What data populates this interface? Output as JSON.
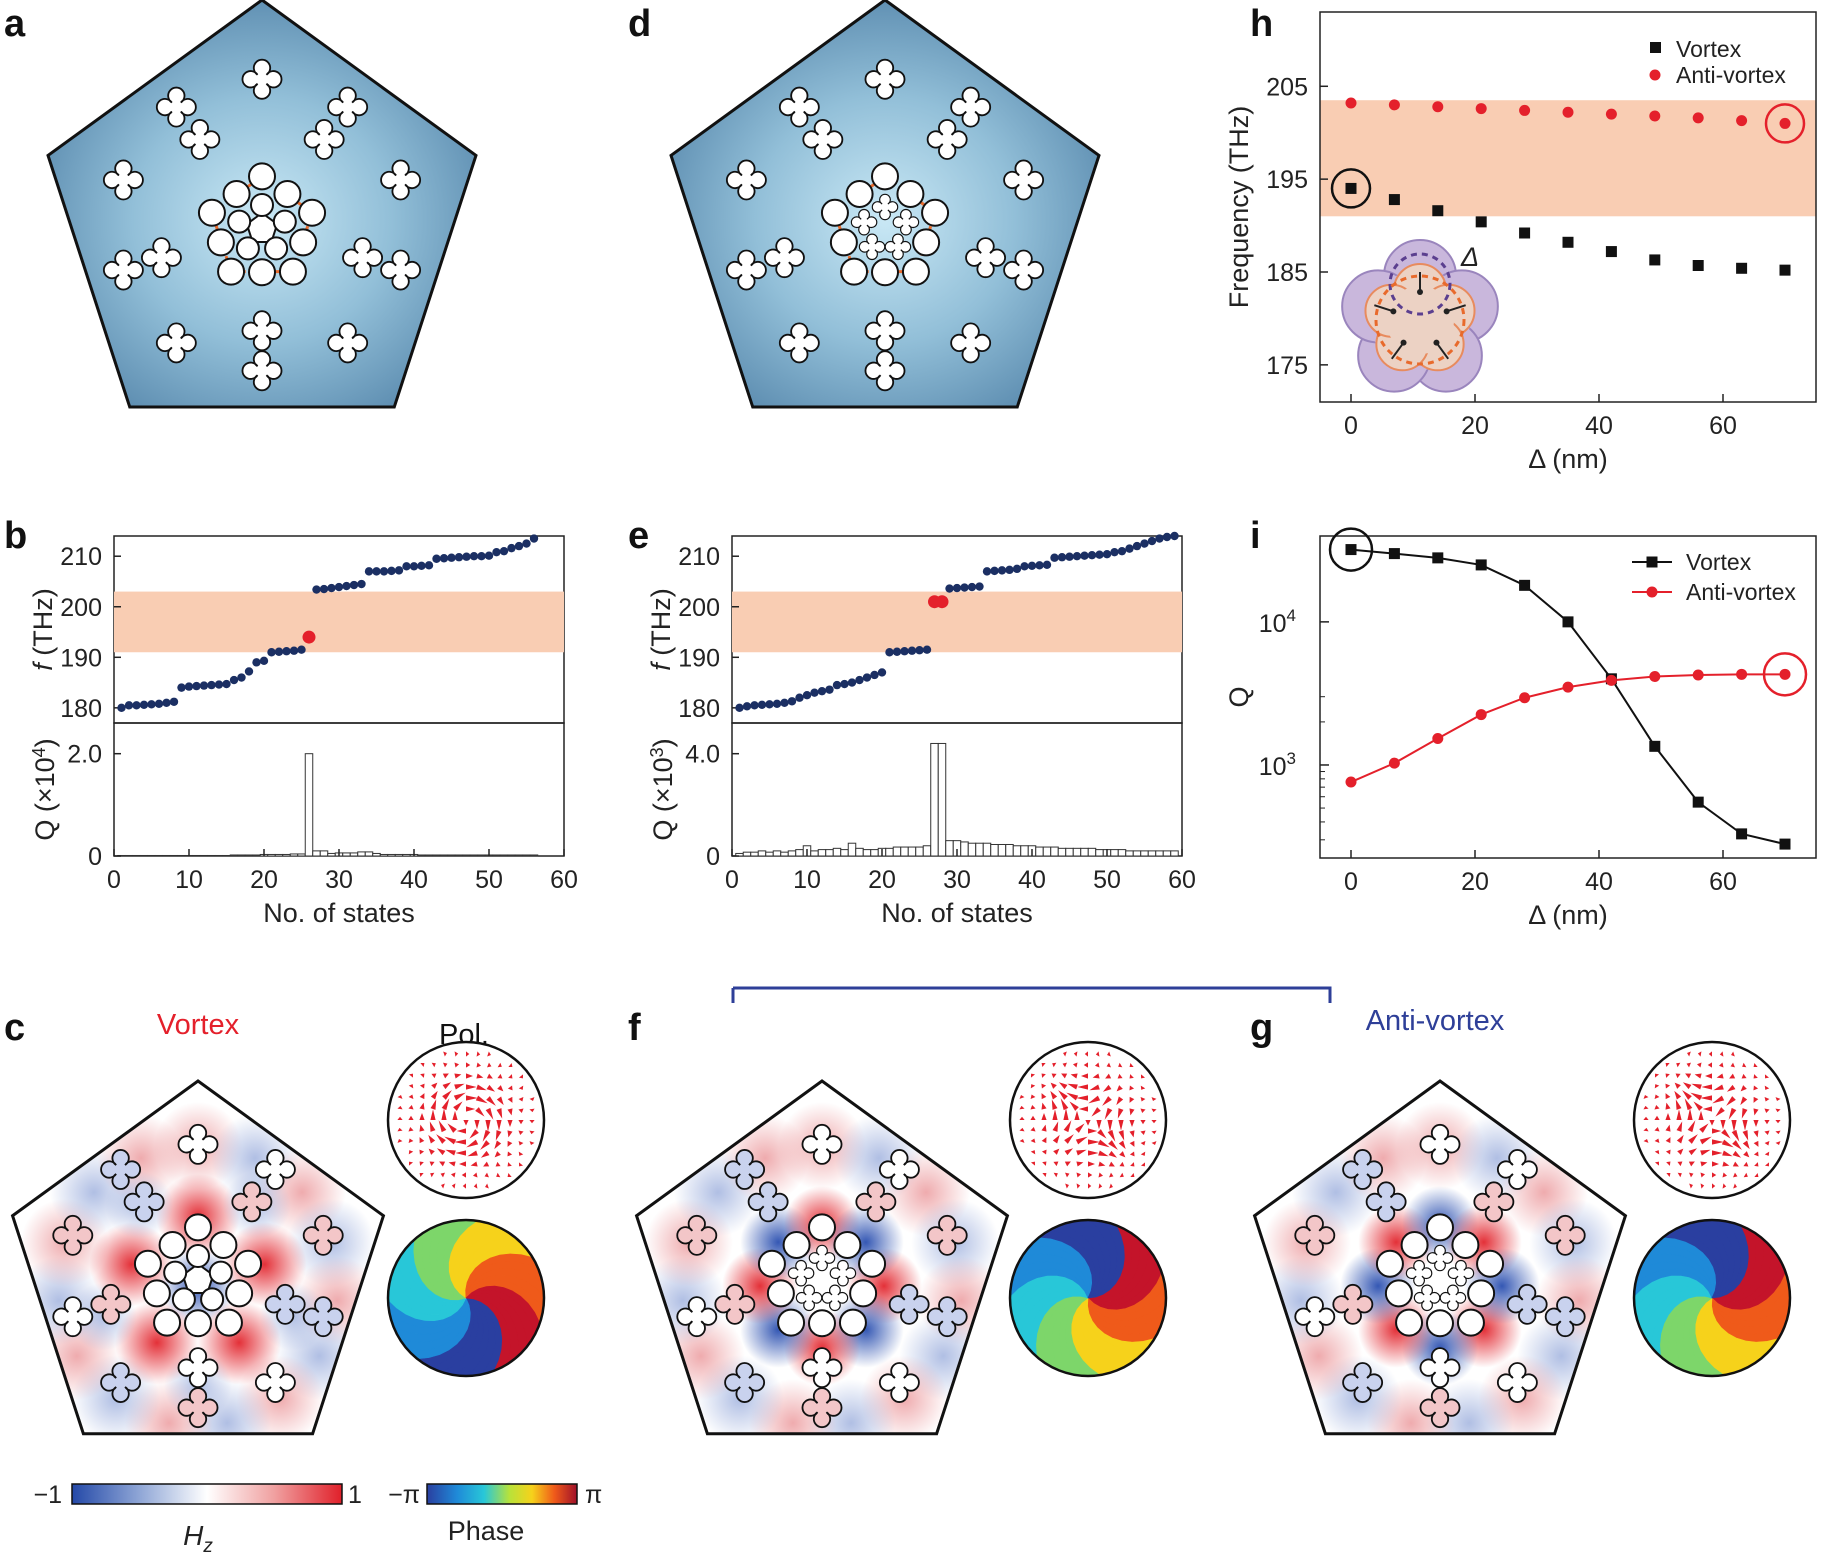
{
  "panel_labels": {
    "a": "a",
    "b": "b",
    "c": "c",
    "d": "d",
    "e": "e",
    "f": "f",
    "g": "g",
    "h": "h",
    "i": "i"
  },
  "colors": {
    "navy": "#1b2f63",
    "red": "#e4202b",
    "band": "#f9cdb3",
    "orange": "#e86a2c",
    "purple": "#5b3f8f",
    "blue_title": "#2e3f98"
  },
  "panel_c": {
    "title": "Vortex",
    "pol_label": "Pol."
  },
  "panel_fg": {
    "title": "Anti-vortex"
  },
  "colorbars": {
    "hz": {
      "min": "−1",
      "max": "1",
      "label": "H",
      "label_sub": "z"
    },
    "phase": {
      "min": "−π",
      "max": "π",
      "label": "Phase"
    }
  },
  "inset_h": {
    "label": "Δ"
  },
  "chart_data": [
    {
      "id": "b_top",
      "type": "scatter",
      "title": "",
      "xlabel": "",
      "ylabel": "f (THz)",
      "xlim": [
        0,
        60
      ],
      "ylim": [
        177,
        214
      ],
      "yticks": [
        180,
        190,
        200,
        210
      ],
      "band": [
        191,
        203
      ],
      "series": [
        {
          "name": "states",
          "x": [
            1,
            2,
            3,
            4,
            5,
            6,
            7,
            8,
            9,
            10,
            11,
            12,
            13,
            14,
            15,
            16,
            17,
            18,
            19,
            20,
            21,
            22,
            23,
            24,
            25,
            27,
            28,
            29,
            30,
            31,
            32,
            33,
            34,
            35,
            36,
            37,
            38,
            39,
            40,
            41,
            42,
            43,
            44,
            45,
            46,
            47,
            48,
            49,
            50,
            51,
            52,
            53,
            54,
            55,
            56
          ],
          "y": [
            180,
            180.5,
            180.5,
            180.6,
            180.7,
            180.8,
            181,
            181.2,
            184,
            184.2,
            184.3,
            184.4,
            184.5,
            184.6,
            184.7,
            185.5,
            186,
            187.2,
            189,
            189.3,
            191,
            191.1,
            191.2,
            191.3,
            191.5,
            203.4,
            203.5,
            203.7,
            203.9,
            204.1,
            204.3,
            204.5,
            207,
            207,
            207,
            207.1,
            207.2,
            208,
            208,
            208.1,
            208.2,
            209.5,
            209.6,
            209.7,
            209.8,
            209.9,
            210,
            210,
            210.1,
            210.8,
            211,
            211.6,
            212,
            212.5,
            213.5
          ]
        },
        {
          "name": "highlight",
          "x": [
            26
          ],
          "y": [
            194
          ]
        }
      ]
    },
    {
      "id": "b_bottom",
      "type": "bar",
      "xlabel": "No. of states",
      "ylabel": "Q (×10",
      "ylabel_sup": "4",
      "ylabel_end": ")",
      "xlim": [
        0,
        60
      ],
      "ylim": [
        0,
        2.6
      ],
      "yticks": [
        "0",
        "2.0"
      ],
      "xticks": [
        "0",
        "10",
        "20",
        "30",
        "40",
        "50",
        "60"
      ],
      "values": [
        0.01,
        0.01,
        0.01,
        0.01,
        0.01,
        0.01,
        0.01,
        0.01,
        0.01,
        0.01,
        0.01,
        0.01,
        0.01,
        0.01,
        0.01,
        0.02,
        0.02,
        0.02,
        0.02,
        0.03,
        0.03,
        0.03,
        0.03,
        0.04,
        0.04,
        2.0,
        0.1,
        0.1,
        0.05,
        0.06,
        0.06,
        0.06,
        0.08,
        0.08,
        0.05,
        0.03,
        0.03,
        0.03,
        0.03,
        0.03,
        0.02,
        0.02,
        0.02,
        0.02,
        0.02,
        0.02,
        0.02,
        0.02,
        0.02,
        0.02,
        0.02,
        0.02,
        0.02,
        0.02,
        0.02,
        0.02
      ]
    },
    {
      "id": "e_top",
      "type": "scatter",
      "title": "",
      "xlabel": "",
      "ylabel": "f (THz)",
      "xlim": [
        0,
        60
      ],
      "ylim": [
        177,
        214
      ],
      "yticks": [
        180,
        190,
        200,
        210
      ],
      "band": [
        191,
        203
      ],
      "series": [
        {
          "name": "states",
          "x": [
            1,
            2,
            3,
            4,
            5,
            6,
            7,
            8,
            9,
            10,
            11,
            12,
            13,
            14,
            15,
            16,
            17,
            18,
            19,
            20,
            21,
            22,
            23,
            24,
            25,
            26,
            29,
            30,
            31,
            32,
            33,
            34,
            35,
            36,
            37,
            38,
            39,
            40,
            41,
            42,
            43,
            44,
            45,
            46,
            47,
            48,
            49,
            50,
            51,
            52,
            53,
            54,
            55,
            56,
            57,
            58,
            59
          ],
          "y": [
            180,
            180.3,
            180.5,
            180.6,
            180.7,
            180.8,
            181,
            181.3,
            182,
            182.5,
            183,
            183.3,
            183.6,
            184.5,
            184.7,
            185,
            185.5,
            186,
            186.5,
            187,
            191,
            191.1,
            191.2,
            191.3,
            191.4,
            191.5,
            203.6,
            203.7,
            203.8,
            203.9,
            204,
            207,
            207.1,
            207.2,
            207.3,
            207.5,
            208,
            208.1,
            208.2,
            208.3,
            209.7,
            209.8,
            209.9,
            210,
            210.1,
            210.2,
            210.3,
            210.4,
            210.8,
            211,
            211.5,
            212,
            212.5,
            213,
            213.5,
            213.8,
            214
          ]
        },
        {
          "name": "highlight",
          "x": [
            27,
            28
          ],
          "y": [
            201,
            201
          ]
        }
      ]
    },
    {
      "id": "e_bottom",
      "type": "bar",
      "xlabel": "No. of states",
      "ylabel": "Q (×10",
      "ylabel_sup": "3",
      "ylabel_end": ")",
      "xlim": [
        0,
        60
      ],
      "ylim": [
        0,
        5.2
      ],
      "yticks": [
        "0",
        "4.0"
      ],
      "xticks": [
        "0",
        "10",
        "20",
        "30",
        "40",
        "50",
        "60"
      ],
      "values": [
        0.1,
        0.15,
        0.15,
        0.2,
        0.15,
        0.2,
        0.15,
        0.2,
        0.25,
        0.4,
        0.2,
        0.25,
        0.25,
        0.3,
        0.25,
        0.5,
        0.3,
        0.25,
        0.25,
        0.3,
        0.3,
        0.35,
        0.35,
        0.35,
        0.35,
        0.4,
        4.4,
        4.4,
        0.6,
        0.6,
        0.55,
        0.5,
        0.5,
        0.5,
        0.45,
        0.45,
        0.45,
        0.4,
        0.4,
        0.4,
        0.35,
        0.35,
        0.35,
        0.3,
        0.3,
        0.3,
        0.3,
        0.3,
        0.25,
        0.25,
        0.25,
        0.25,
        0.2,
        0.2,
        0.2,
        0.2,
        0.2,
        0.2,
        0.2
      ]
    },
    {
      "id": "h",
      "type": "scatter",
      "xlabel": "Δ (nm)",
      "ylabel": "Frequency (THz)",
      "xlim": [
        -5,
        75
      ],
      "ylim": [
        171,
        213
      ],
      "yticks": [
        175,
        185,
        195,
        205
      ],
      "xticks": [
        0,
        20,
        40,
        60
      ],
      "band": [
        191,
        203.5
      ],
      "series": [
        {
          "name": "Vortex",
          "x": [
            0,
            7,
            14,
            21,
            28,
            35,
            42,
            49,
            56,
            63,
            70
          ],
          "y": [
            194,
            192.8,
            191.6,
            190.4,
            189.2,
            188.2,
            187.2,
            186.3,
            185.7,
            185.4,
            185.2
          ]
        },
        {
          "name": "Anti-vortex",
          "x": [
            0,
            7,
            14,
            21,
            28,
            35,
            42,
            49,
            56,
            63,
            70
          ],
          "y": [
            203.2,
            203,
            202.8,
            202.6,
            202.4,
            202.2,
            202,
            201.8,
            201.6,
            201.3,
            201
          ]
        }
      ],
      "legend": [
        "Vortex",
        "Anti-vortex"
      ]
    },
    {
      "id": "i",
      "type": "line",
      "xlabel": "Δ (nm)",
      "ylabel": "Q",
      "yscale": "log",
      "xlim": [
        -5,
        75
      ],
      "ylim_log10": [
        2.35,
        4.6
      ],
      "yticks": [
        "10",
        "10"
      ],
      "ytick_sups": [
        "3",
        "4"
      ],
      "ytick_values": [
        1000,
        10000
      ],
      "xticks": [
        0,
        20,
        40,
        60
      ],
      "series": [
        {
          "name": "Vortex",
          "x": [
            0,
            7,
            14,
            21,
            28,
            35,
            42,
            49,
            56,
            63,
            70
          ],
          "y": [
            32000,
            30000,
            28000,
            25000,
            18000,
            10000,
            4000,
            1350,
            550,
            330,
            280
          ]
        },
        {
          "name": "Anti-vortex",
          "x": [
            0,
            7,
            14,
            21,
            28,
            35,
            42,
            49,
            56,
            63,
            70
          ],
          "y": [
            760,
            1030,
            1530,
            2250,
            2950,
            3500,
            3900,
            4150,
            4250,
            4300,
            4300
          ]
        }
      ],
      "legend": [
        "Vortex",
        "Anti-vortex"
      ]
    }
  ]
}
